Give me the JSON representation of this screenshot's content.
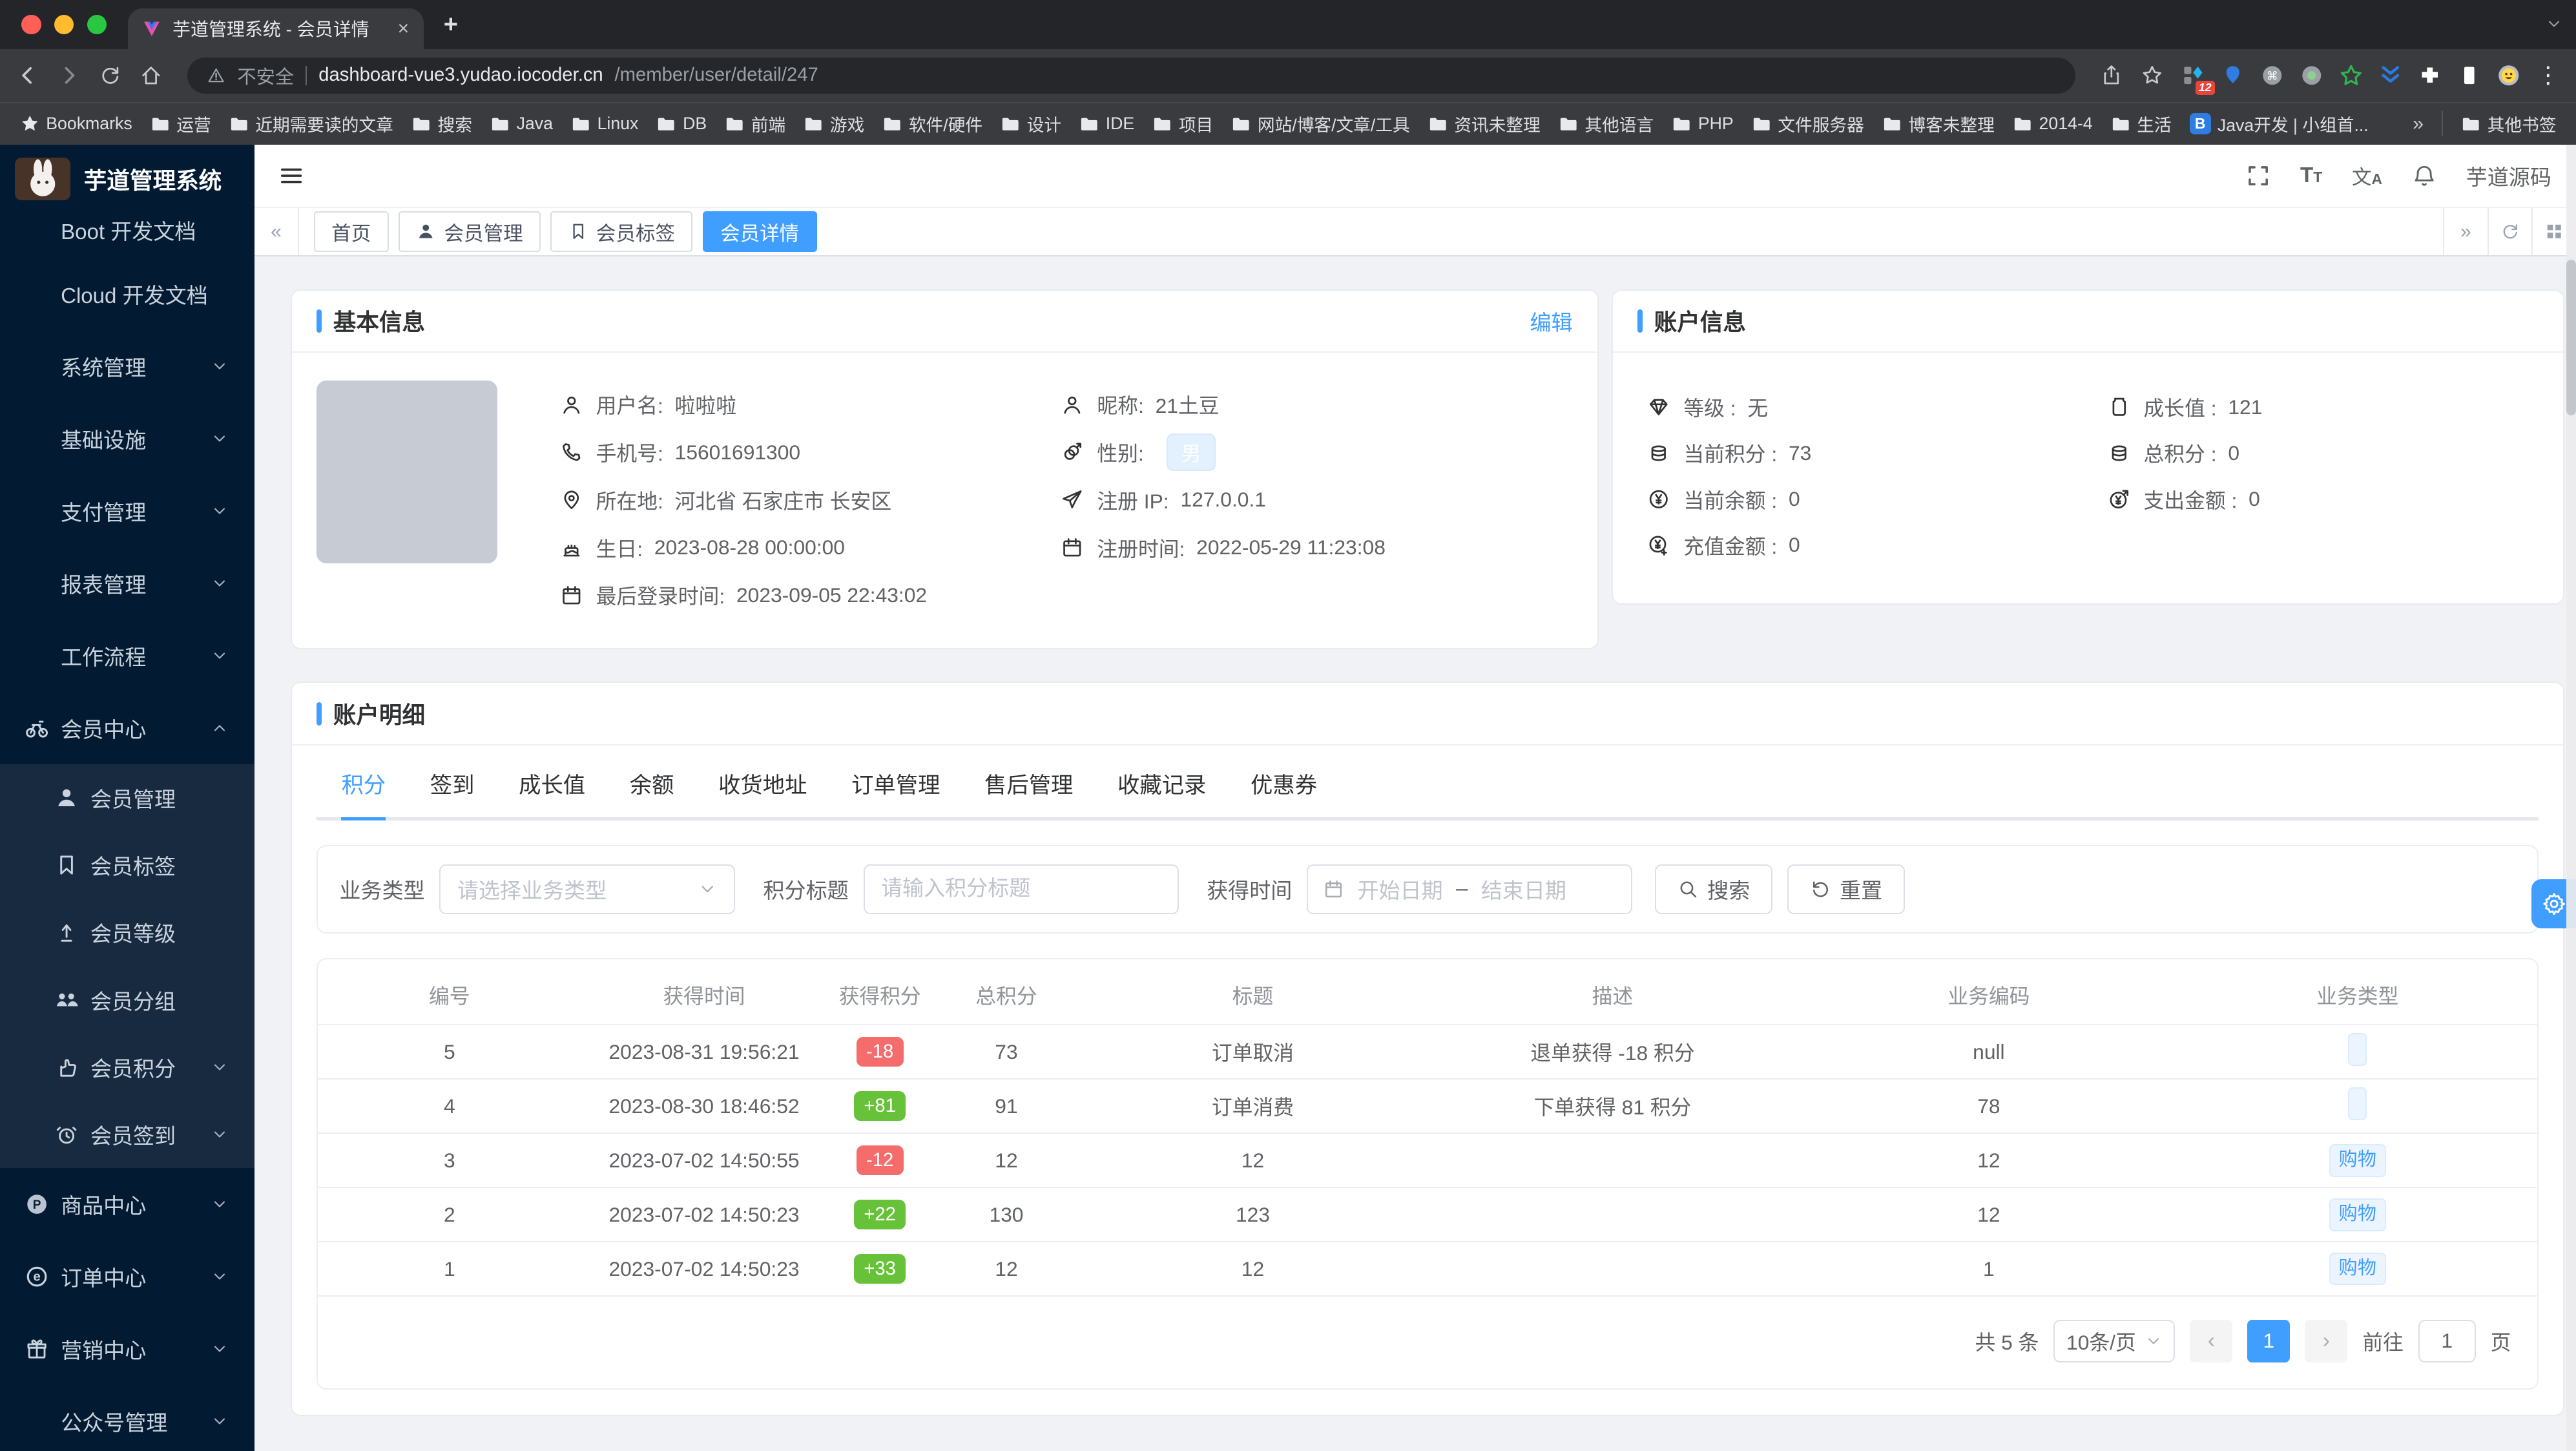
{
  "colors": {
    "accent": "#409eff",
    "danger": "#f56c6c",
    "success": "#67c23a",
    "tag_blue_bg": "#ecf5ff",
    "sidebar_bg": "#021b32",
    "submenu_bg": "#182a40"
  },
  "browser": {
    "tab_title": "芋道管理系统 - 会员详情",
    "security": "不安全",
    "host": "dashboard-vue3.yudao.iocoder.cn",
    "path": "/member/user/detail/247",
    "ext_badge": "12",
    "bookmarks": [
      {
        "label": "Bookmarks",
        "icon": "star-f"
      },
      {
        "label": "运营",
        "icon": "folder"
      },
      {
        "label": "近期需要读的文章",
        "icon": "folder"
      },
      {
        "label": "搜索",
        "icon": "folder"
      },
      {
        "label": "Java",
        "icon": "folder"
      },
      {
        "label": "Linux",
        "icon": "folder"
      },
      {
        "label": "DB",
        "icon": "folder"
      },
      {
        "label": "前端",
        "icon": "folder"
      },
      {
        "label": "游戏",
        "icon": "folder"
      },
      {
        "label": "软件/硬件",
        "icon": "folder"
      },
      {
        "label": "设计",
        "icon": "folder"
      },
      {
        "label": "IDE",
        "icon": "folder"
      },
      {
        "label": "项目",
        "icon": "folder"
      },
      {
        "label": "网站/博客/文章/工具",
        "icon": "folder"
      },
      {
        "label": "资讯未整理",
        "icon": "folder"
      },
      {
        "label": "其他语言",
        "icon": "folder"
      },
      {
        "label": "PHP",
        "icon": "folder"
      },
      {
        "label": "文件服务器",
        "icon": "folder"
      },
      {
        "label": "博客未整理",
        "icon": "folder"
      },
      {
        "label": "2014-4",
        "icon": "folder"
      },
      {
        "label": "生活",
        "icon": "folder"
      },
      {
        "label": "Java开发 | 小组首...",
        "icon": "bsq"
      },
      {
        "label": "»",
        "cls": "bm-chev"
      },
      {
        "label": "其他书签",
        "icon": "folder",
        "cls": "bm-right"
      }
    ]
  },
  "sidebar": {
    "title": "芋道管理系统",
    "items": [
      {
        "label": "Boot 开发文档",
        "cls": "clip"
      },
      {
        "label": "Cloud 开发文档"
      },
      {
        "label": "系统管理",
        "chev": "chevron-down"
      },
      {
        "label": "基础设施",
        "chev": "chevron-down"
      },
      {
        "label": "支付管理",
        "chev": "chevron-down"
      },
      {
        "label": "报表管理",
        "chev": "chevron-down"
      },
      {
        "label": "工作流程",
        "chev": "chevron-down"
      },
      {
        "label": "会员中心",
        "icon": "bicycle",
        "chev": "chevron-up"
      },
      {
        "label": "会员管理",
        "icon": "person-f",
        "cls": "sub"
      },
      {
        "label": "会员标签",
        "icon": "bookmark",
        "cls": "sub"
      },
      {
        "label": "会员等级",
        "icon": "levelup",
        "cls": "sub"
      },
      {
        "label": "会员分组",
        "icon": "users",
        "cls": "sub"
      },
      {
        "label": "会员积分",
        "icon": "thumb",
        "chev": "chevron-down",
        "cls": "sub"
      },
      {
        "label": "会员签到",
        "icon": "alarm",
        "chev": "chevron-down",
        "cls": "sub"
      },
      {
        "label": "商品中心",
        "icon": "pcircle",
        "chev": "chevron-down"
      },
      {
        "label": "订单中心",
        "icon": "ecircle",
        "chev": "chevron-down"
      },
      {
        "label": "营销中心",
        "icon": "gift",
        "chev": "chevron-down"
      },
      {
        "label": "公众号管理",
        "chev": "chevron-down"
      }
    ]
  },
  "header": {
    "username": "芋道源码"
  },
  "tabsbar": {
    "tabs": [
      {
        "label": "首页"
      },
      {
        "label": "会员管理",
        "icon": "person-f"
      },
      {
        "label": "会员标签",
        "icon": "bookmark"
      },
      {
        "label": "会员详情",
        "cls": "active"
      }
    ]
  },
  "basic": {
    "title": "基本信息",
    "edit": "编辑",
    "left": [
      {
        "icon": "person-o",
        "label": "用户名:",
        "value": "啦啦啦"
      },
      {
        "icon": "phone",
        "label": "手机号:",
        "value": "15601691300"
      },
      {
        "icon": "pin",
        "label": "所在地:",
        "value": "河北省 石家庄市 长安区"
      },
      {
        "icon": "cake",
        "label": "生日:",
        "value": "2023-08-28 00:00:00"
      },
      {
        "icon": "calendar",
        "label": "最后登录时间:",
        "value": "2023-09-05 22:43:02"
      }
    ],
    "right": [
      {
        "icon": "person-o",
        "label": "昵称:",
        "value": "21土豆"
      },
      {
        "icon": "gender",
        "label": "性别:",
        "tag": "男"
      },
      {
        "icon": "plane",
        "label": "注册 IP:",
        "value": "127.0.0.1"
      },
      {
        "icon": "calendar",
        "label": "注册时间:",
        "value": "2022-05-29 11:23:08"
      }
    ]
  },
  "account": {
    "title": "账户信息",
    "left": [
      {
        "icon": "diamond",
        "label": "等级 :",
        "value": "无"
      },
      {
        "icon": "coins",
        "label": "当前积分 :",
        "value": "73"
      },
      {
        "icon": "yen",
        "label": "当前余额 :",
        "value": "0"
      },
      {
        "icon": "yen-in",
        "label": "充值金额 :",
        "value": "0"
      }
    ],
    "right": [
      {
        "icon": "jar",
        "label": "成长值 :",
        "value": "121"
      },
      {
        "icon": "coins",
        "label": "总积分 :",
        "value": "0"
      },
      {
        "icon": "yen-out",
        "label": "支出金额 :",
        "value": "0"
      }
    ]
  },
  "detail": {
    "title": "账户明细",
    "tabs": [
      {
        "label": "积分",
        "cls": "active"
      },
      {
        "label": "签到"
      },
      {
        "label": "成长值"
      },
      {
        "label": "余额"
      },
      {
        "label": "收货地址"
      },
      {
        "label": "订单管理"
      },
      {
        "label": "售后管理"
      },
      {
        "label": "收藏记录"
      },
      {
        "label": "优惠券"
      }
    ],
    "filter": {
      "type_label": "业务类型",
      "type_placeholder": "请选择业务类型",
      "title_label": "积分标题",
      "title_placeholder": "请输入积分标题",
      "time_label": "获得时间",
      "start_placeholder": "开始日期",
      "range_sep": "–",
      "end_placeholder": "结束日期",
      "search": "搜索",
      "reset": "重置"
    },
    "table": {
      "headers": [
        "编号",
        "获得时间",
        "获得积分",
        "总积分",
        "标题",
        "描述",
        "业务编码",
        "业务类型"
      ],
      "rows": [
        {
          "no": "5",
          "time": "2023-08-31 19:56:21",
          "delta": "-18",
          "delta_bg": "#f56c6c",
          "total": "73",
          "title": "订单取消",
          "desc": "退单获得 -18 积分",
          "code": "null",
          "type": ""
        },
        {
          "no": "4",
          "time": "2023-08-30 18:46:52",
          "delta": "+81",
          "delta_bg": "#67c23a",
          "total": "91",
          "title": "订单消费",
          "desc": "下单获得 81 积分",
          "code": "78",
          "type": ""
        },
        {
          "no": "3",
          "time": "2023-07-02 14:50:55",
          "delta": "-12",
          "delta_bg": "#f56c6c",
          "total": "12",
          "title": "12",
          "desc": "",
          "code": "12",
          "type": "购物"
        },
        {
          "no": "2",
          "time": "2023-07-02 14:50:23",
          "delta": "+22",
          "delta_bg": "#67c23a",
          "total": "130",
          "title": "123",
          "desc": "",
          "code": "12",
          "type": "购物"
        },
        {
          "no": "1",
          "time": "2023-07-02 14:50:23",
          "delta": "+33",
          "delta_bg": "#67c23a",
          "total": "12",
          "title": "12",
          "desc": "",
          "code": "1",
          "type": "购物"
        }
      ]
    },
    "pagination": {
      "total": "共 5 条",
      "size": "10条/页",
      "page": "1",
      "goto": "前往",
      "goto_value": "1",
      "unit": "页"
    }
  }
}
